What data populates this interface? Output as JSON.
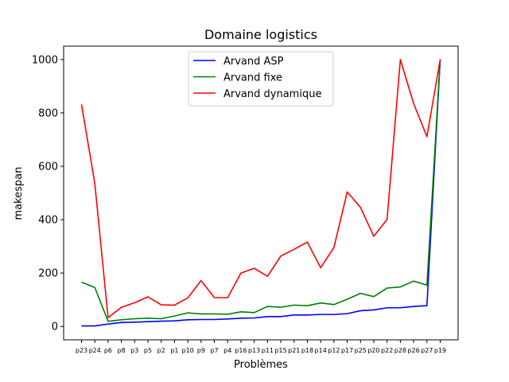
{
  "chart_data": {
    "type": "line",
    "title": "Domaine logistics",
    "xlabel": "Problèmes",
    "ylabel": "makespan",
    "categories": [
      "p23",
      "p24",
      "p6",
      "p8",
      "p3",
      "p5",
      "p2",
      "p1",
      "p10",
      "p9",
      "p7",
      "p4",
      "p16",
      "p13",
      "p11",
      "p15",
      "p21",
      "p18",
      "p14",
      "p12",
      "p17",
      "p25",
      "p20",
      "p22",
      "p28",
      "p26",
      "p27",
      "p19"
    ],
    "yticks": [
      0,
      200,
      400,
      600,
      800,
      1000
    ],
    "ylim": [
      -50,
      1050
    ],
    "grid": false,
    "legend_position": "top-center",
    "series": [
      {
        "name": "Arvand ASP",
        "color": "#0000ff",
        "values": [
          2,
          2,
          9,
          15,
          16,
          18,
          20,
          21,
          25,
          26,
          26,
          28,
          31,
          32,
          37,
          37,
          43,
          43,
          45,
          45,
          48,
          59,
          62,
          70,
          70,
          75,
          78,
          1000
        ]
      },
      {
        "name": "Arvand fixe",
        "color": "#008000",
        "values": [
          166,
          146,
          19,
          25,
          29,
          31,
          29,
          39,
          51,
          47,
          47,
          46,
          55,
          52,
          75,
          72,
          80,
          78,
          88,
          82,
          102,
          124,
          112,
          144,
          148,
          170,
          155,
          1000
        ]
      },
      {
        "name": "Arvand dynamique",
        "color": "#ff0000",
        "values": [
          832,
          536,
          33,
          72,
          89,
          111,
          81,
          80,
          107,
          172,
          108,
          108,
          200,
          218,
          188,
          264,
          289,
          316,
          220,
          296,
          504,
          446,
          338,
          401,
          1000,
          835,
          711,
          1000
        ]
      }
    ]
  }
}
